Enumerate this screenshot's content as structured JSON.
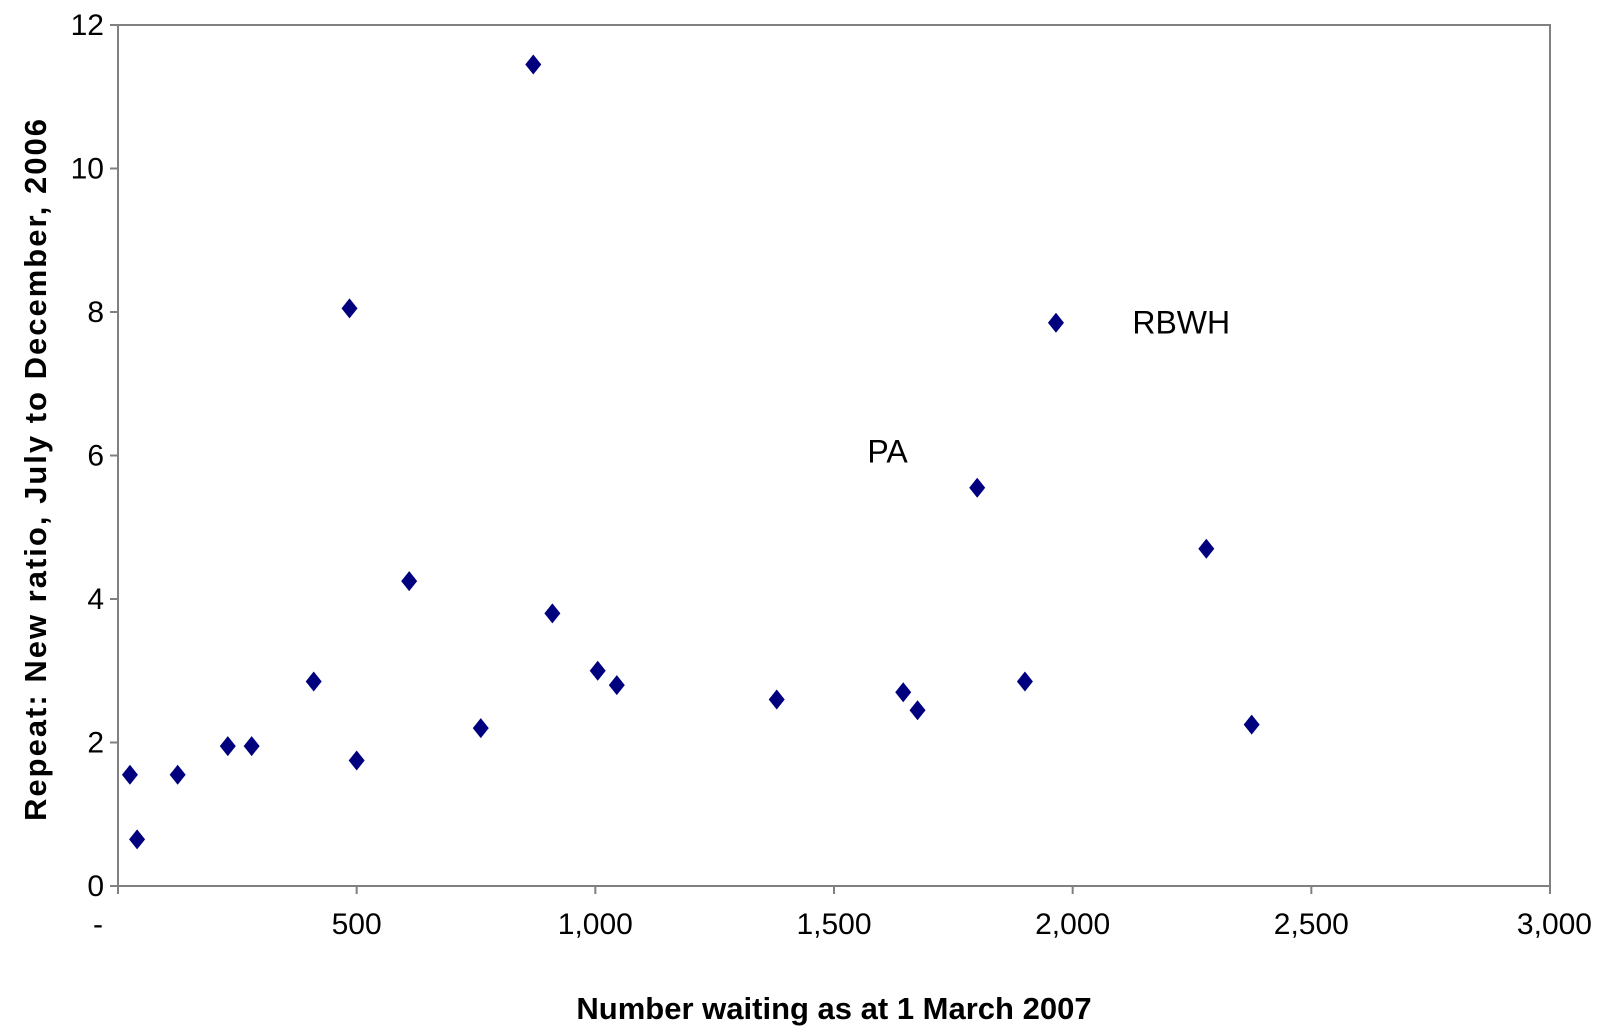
{
  "chart_data": {
    "type": "scatter",
    "title": "",
    "xlabel": "Number waiting as at 1 March 2007",
    "ylabel": "Repeat: New ratio, July to December, 2006",
    "xlim": [
      0,
      3000
    ],
    "ylim": [
      0,
      12
    ],
    "x_ticks": [
      0,
      500,
      1000,
      1500,
      2000,
      2500,
      3000
    ],
    "x_tick_labels": [
      "-",
      "500",
      "1,000",
      "1,500",
      "2,000",
      "2,500",
      "3,000"
    ],
    "y_ticks": [
      0,
      2,
      4,
      6,
      8,
      10,
      12
    ],
    "y_tick_labels": [
      "0",
      "2",
      "4",
      "6",
      "8",
      "10",
      "12"
    ],
    "grid": false,
    "legend": "none",
    "marker_color": "#00007F",
    "points": [
      {
        "x": 25,
        "y": 1.55
      },
      {
        "x": 40,
        "y": 0.65
      },
      {
        "x": 125,
        "y": 1.55
      },
      {
        "x": 230,
        "y": 1.95
      },
      {
        "x": 280,
        "y": 1.95
      },
      {
        "x": 410,
        "y": 2.85
      },
      {
        "x": 485,
        "y": 8.05
      },
      {
        "x": 500,
        "y": 1.75
      },
      {
        "x": 610,
        "y": 4.25
      },
      {
        "x": 760,
        "y": 2.2
      },
      {
        "x": 870,
        "y": 11.45
      },
      {
        "x": 910,
        "y": 3.8
      },
      {
        "x": 1005,
        "y": 3.0
      },
      {
        "x": 1045,
        "y": 2.8
      },
      {
        "x": 1380,
        "y": 2.6
      },
      {
        "x": 1645,
        "y": 2.7
      },
      {
        "x": 1675,
        "y": 2.45
      },
      {
        "x": 1800,
        "y": 5.55
      },
      {
        "x": 1900,
        "y": 2.85
      },
      {
        "x": 1965,
        "y": 7.85
      },
      {
        "x": 2280,
        "y": 4.7
      },
      {
        "x": 2375,
        "y": 2.25
      }
    ],
    "annotations": [
      {
        "text": "RBWH",
        "x": 2125,
        "y": 7.7
      },
      {
        "text": "PA",
        "x": 1570,
        "y": 5.9
      }
    ]
  }
}
